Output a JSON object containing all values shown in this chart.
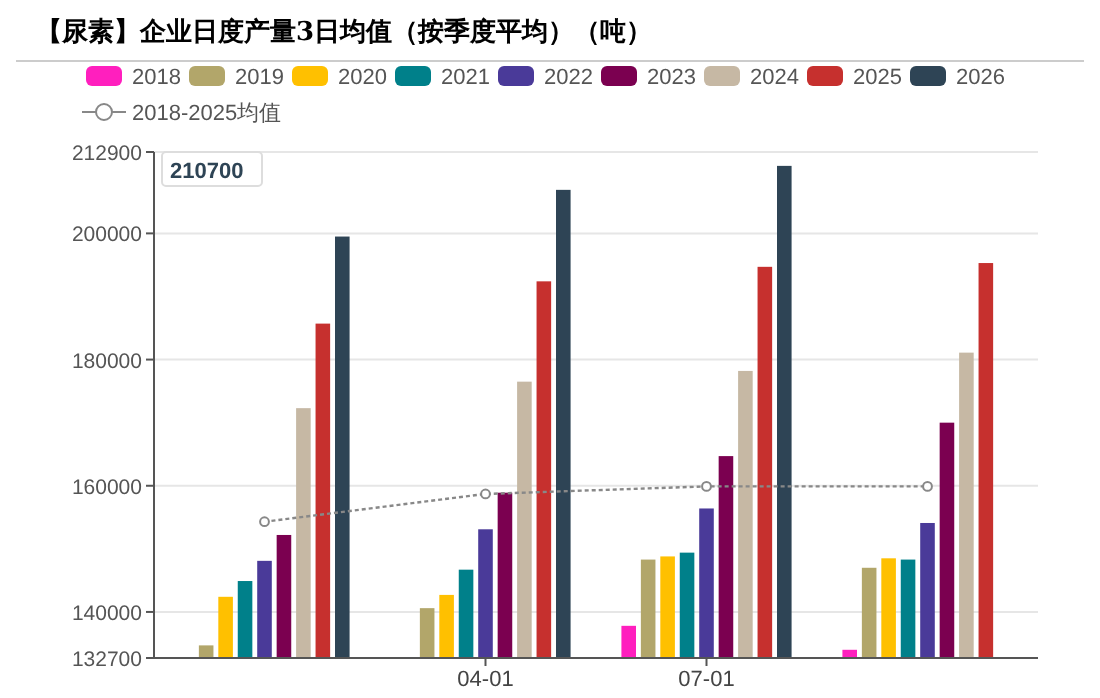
{
  "chart_data": {
    "type": "bar",
    "title": "【尿素】企业日度产量3日均值（按季度平均）（吨）",
    "categories": [
      null,
      "04-01",
      "07-01",
      null
    ],
    "ylim": [
      132700,
      212900
    ],
    "yticks": [
      132700,
      140000,
      160000,
      180000,
      200000,
      212900
    ],
    "grid": "y",
    "legend": "top",
    "annotations": [
      "210700"
    ],
    "series": [
      {
        "name": "2018",
        "color": "#ff1fbe",
        "values": [
          null,
          null,
          137800,
          134000
        ]
      },
      {
        "name": "2019",
        "color": "#b2a66a",
        "values": [
          134700,
          140600,
          148300,
          147000
        ]
      },
      {
        "name": "2020",
        "color": "#ffc000",
        "values": [
          142400,
          142700,
          148800,
          148500
        ]
      },
      {
        "name": "2021",
        "color": "#00808a",
        "values": [
          144900,
          146700,
          149400,
          148300
        ]
      },
      {
        "name": "2022",
        "color": "#4a3a99",
        "values": [
          148100,
          153100,
          156400,
          154100
        ]
      },
      {
        "name": "2023",
        "color": "#7b0050",
        "values": [
          152200,
          158900,
          164700,
          170000
        ]
      },
      {
        "name": "2024",
        "color": "#c6b8a4",
        "values": [
          172300,
          176500,
          178200,
          181100
        ]
      },
      {
        "name": "2025",
        "color": "#c6302e",
        "values": [
          185700,
          192400,
          194700,
          195300
        ]
      },
      {
        "name": "2026",
        "color": "#2e4455",
        "values": [
          199500,
          206900,
          210700,
          null
        ]
      },
      {
        "name": "2018-2025均值",
        "type": "line",
        "color": "#888888",
        "marker": "circle",
        "line_style": "dotted",
        "values": [
          154300,
          158700,
          159900,
          159900
        ]
      }
    ]
  }
}
